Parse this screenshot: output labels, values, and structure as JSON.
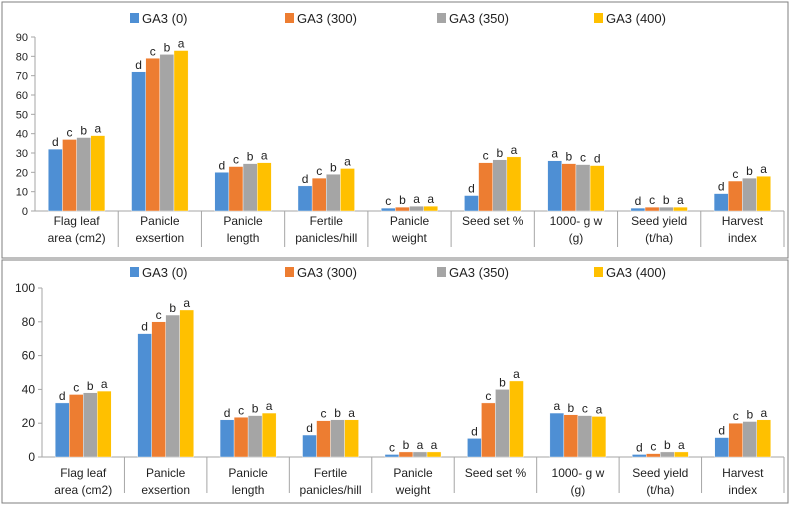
{
  "colors": {
    "GA3 (0)": "#4e8fd4",
    "GA3 (300)": "#ed7d31",
    "GA3 (350)": "#a5a5a5",
    "GA3 (400)": "#ffc000",
    "axis": "#a6a6a6",
    "frame": "#7f7f7f",
    "text": "#222222"
  },
  "chart_data": [
    {
      "type": "bar",
      "legend_position": "top",
      "grid": false,
      "ylim": [
        0,
        90
      ],
      "yticks": [
        "0",
        "10",
        "20",
        "30",
        "40",
        "50",
        "60",
        "70",
        "80",
        "90"
      ],
      "categories": [
        [
          "Flag leaf",
          "area (cm2)"
        ],
        [
          "Panicle",
          "exsertion"
        ],
        [
          "Panicle",
          "length"
        ],
        [
          "Fertile",
          "panicles/hill"
        ],
        [
          "Panicle",
          "weight"
        ],
        [
          "Seed set %"
        ],
        [
          "1000- g w",
          "(g)"
        ],
        [
          "Seed yield",
          "(t/ha)"
        ],
        [
          "Harvest",
          "index"
        ]
      ],
      "series": [
        {
          "name": "GA3 (0)",
          "values": [
            32,
            72,
            20,
            13,
            1.5,
            8,
            26,
            1.5,
            9
          ],
          "labels": [
            "d",
            "d",
            "d",
            "d",
            "c",
            "d",
            "a",
            "d",
            "d"
          ]
        },
        {
          "name": "GA3 (300)",
          "values": [
            37,
            79,
            23,
            17,
            2,
            25,
            24.5,
            2,
            15.5
          ],
          "labels": [
            "c",
            "c",
            "c",
            "c",
            "b",
            "c",
            "b",
            "c",
            "c"
          ]
        },
        {
          "name": "GA3 (350)",
          "values": [
            38,
            81,
            24.5,
            19,
            2.5,
            26.5,
            24,
            2,
            17
          ],
          "labels": [
            "b",
            "b",
            "b",
            "b",
            "a",
            "b",
            "c",
            "b",
            "b"
          ]
        },
        {
          "name": "GA3 (400)",
          "values": [
            39,
            83,
            25,
            22,
            2.5,
            28,
            23.5,
            2,
            18
          ],
          "labels": [
            "a",
            "a",
            "a",
            "a",
            "a",
            "a",
            "d",
            "a",
            "a"
          ]
        }
      ]
    },
    {
      "type": "bar",
      "legend_position": "top",
      "grid": false,
      "ylim": [
        0,
        100
      ],
      "yticks": [
        "0",
        "20",
        "40",
        "60",
        "80",
        "100"
      ],
      "categories": [
        [
          "Flag leaf",
          "area (cm2)"
        ],
        [
          "Panicle",
          "exsertion"
        ],
        [
          "Panicle",
          "length"
        ],
        [
          "Fertile",
          "panicles/hill"
        ],
        [
          "Panicle",
          "weight"
        ],
        [
          "Seed set %"
        ],
        [
          "1000- g w",
          "(g)"
        ],
        [
          "Seed yield",
          "(t/ha)"
        ],
        [
          "Harvest",
          "index"
        ]
      ],
      "series": [
        {
          "name": "GA3 (0)",
          "values": [
            32,
            73,
            22,
            13,
            1.5,
            11,
            26,
            1.5,
            11.5
          ],
          "labels": [
            "d",
            "d",
            "d",
            "d",
            "c",
            "d",
            "a",
            "d",
            "d"
          ]
        },
        {
          "name": "GA3 (300)",
          "values": [
            37,
            80,
            23.5,
            21.5,
            3,
            32,
            25,
            2,
            20
          ],
          "labels": [
            "c",
            "c",
            "c",
            "c",
            "b",
            "c",
            "b",
            "c",
            "c"
          ]
        },
        {
          "name": "GA3 (350)",
          "values": [
            38,
            84,
            24.5,
            22,
            3,
            40,
            24.5,
            3,
            21
          ],
          "labels": [
            "b",
            "b",
            "b",
            "b",
            "a",
            "b",
            "c",
            "b",
            "b"
          ]
        },
        {
          "name": "GA3 (400)",
          "values": [
            39,
            87,
            26,
            22,
            3,
            45,
            24,
            3,
            22
          ],
          "labels": [
            "a",
            "a",
            "a",
            "a",
            "a",
            "a",
            "a",
            "a",
            "a"
          ]
        }
      ]
    }
  ]
}
